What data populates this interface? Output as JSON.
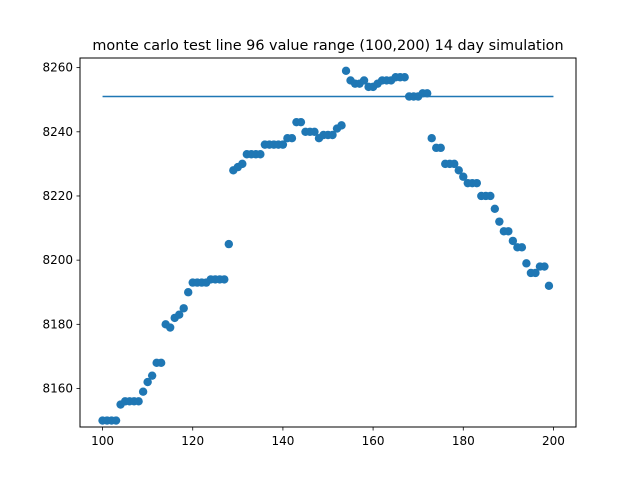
{
  "chart_data": {
    "type": "scatter",
    "title": "monte carlo test line 96 value range (100,200) 14 day simulation",
    "xlabel": "",
    "ylabel": "",
    "xlim": [
      95,
      205
    ],
    "ylim": [
      8148,
      8263
    ],
    "xticks": [
      100,
      120,
      140,
      160,
      180,
      200
    ],
    "yticks": [
      8160,
      8180,
      8200,
      8220,
      8240,
      8260
    ],
    "grid": false,
    "legend": "none",
    "colors": {
      "points": "#1f77b4",
      "line": "#1f77b4",
      "axes": "#000000",
      "background": "#ffffff"
    },
    "series": [
      {
        "type": "scatter",
        "x": [
          100,
          101,
          102,
          103,
          104,
          105,
          106,
          107,
          108,
          109,
          110,
          111,
          112,
          113,
          114,
          115,
          116,
          117,
          118,
          119,
          120,
          121,
          122,
          123,
          124,
          125,
          126,
          127,
          128,
          129,
          130,
          131,
          132,
          133,
          134,
          135,
          136,
          137,
          138,
          139,
          140,
          141,
          142,
          143,
          144,
          145,
          146,
          147,
          148,
          149,
          150,
          151,
          152,
          153,
          154,
          155,
          156,
          157,
          158,
          159,
          160,
          161,
          162,
          163,
          164,
          165,
          166,
          167,
          168,
          169,
          170,
          171,
          172,
          173,
          174,
          175,
          176,
          177,
          178,
          179,
          180,
          181,
          182,
          183,
          184,
          185,
          186,
          187,
          188,
          189,
          190,
          191,
          192,
          193,
          194,
          195,
          196,
          197,
          198,
          199
        ],
        "y": [
          8150,
          8150,
          8150,
          8150,
          8155,
          8156,
          8156,
          8156,
          8156,
          8159,
          8162,
          8164,
          8168,
          8168,
          8180,
          8179,
          8182,
          8183,
          8185,
          8190,
          8193,
          8193,
          8193,
          8193,
          8194,
          8194,
          8194,
          8194,
          8205,
          8228,
          8229,
          8230,
          8233,
          8233,
          8233,
          8233,
          8236,
          8236,
          8236,
          8236,
          8236,
          8238,
          8238,
          8243,
          8243,
          8240,
          8240,
          8240,
          8238,
          8239,
          8239,
          8239,
          8241,
          8242,
          8259,
          8256,
          8255,
          8255,
          8256,
          8254,
          8254,
          8255,
          8256,
          8256,
          8256,
          8257,
          8257,
          8257,
          8251,
          8251,
          8251,
          8252,
          8252,
          8238,
          8235,
          8235,
          8230,
          8230,
          8230,
          8228,
          8226,
          8224,
          8224,
          8224,
          8220,
          8220,
          8220,
          8216,
          8212,
          8209,
          8209,
          8206,
          8204,
          8204,
          8199,
          8196,
          8196,
          8198,
          8198,
          8192
        ]
      },
      {
        "type": "line",
        "x": [
          100,
          200
        ],
        "y": [
          8251,
          8251
        ]
      }
    ]
  }
}
